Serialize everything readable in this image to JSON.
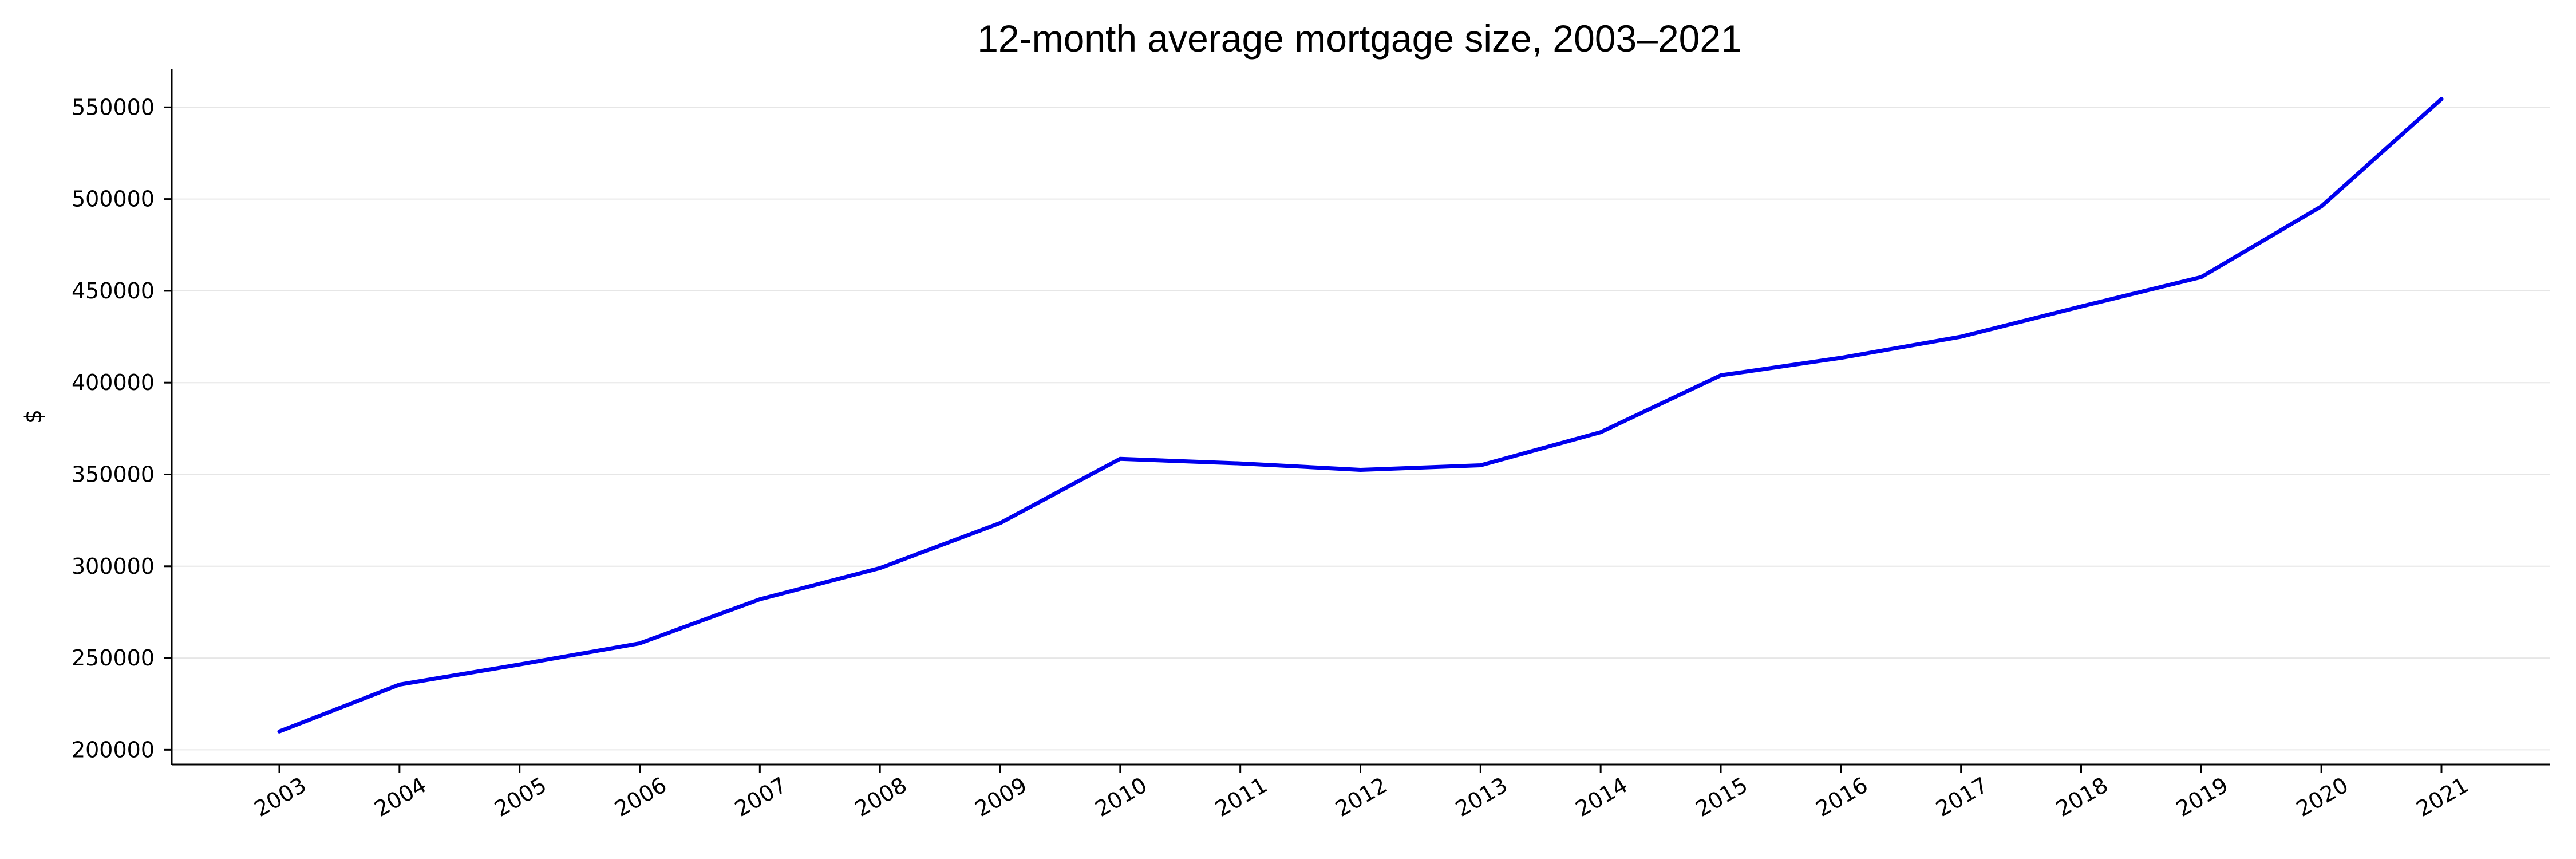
{
  "chart_data": {
    "type": "line",
    "title": "12-month average mortgage size, 2003–2021",
    "xlabel": "",
    "ylabel": "$",
    "x": [
      "2003",
      "2004",
      "2005",
      "2006",
      "2007",
      "2008",
      "2009",
      "2010",
      "2011",
      "2012",
      "2013",
      "2014",
      "2015",
      "2016",
      "2017",
      "2018",
      "2019",
      "2020",
      "2021"
    ],
    "series": [
      {
        "values": [
          210000,
          235500,
          246500,
          258000,
          282000,
          299000,
          323500,
          358500,
          356000,
          352500,
          355000,
          373000,
          404000,
          413500,
          425000,
          441500,
          457500,
          496000,
          554500
        ],
        "color": "#0000ee"
      }
    ],
    "y_ticks": [
      200000,
      250000,
      300000,
      350000,
      400000,
      450000,
      500000,
      550000
    ],
    "ylim": [
      192000,
      571000
    ],
    "grid": "horizontal",
    "legend": "none"
  }
}
